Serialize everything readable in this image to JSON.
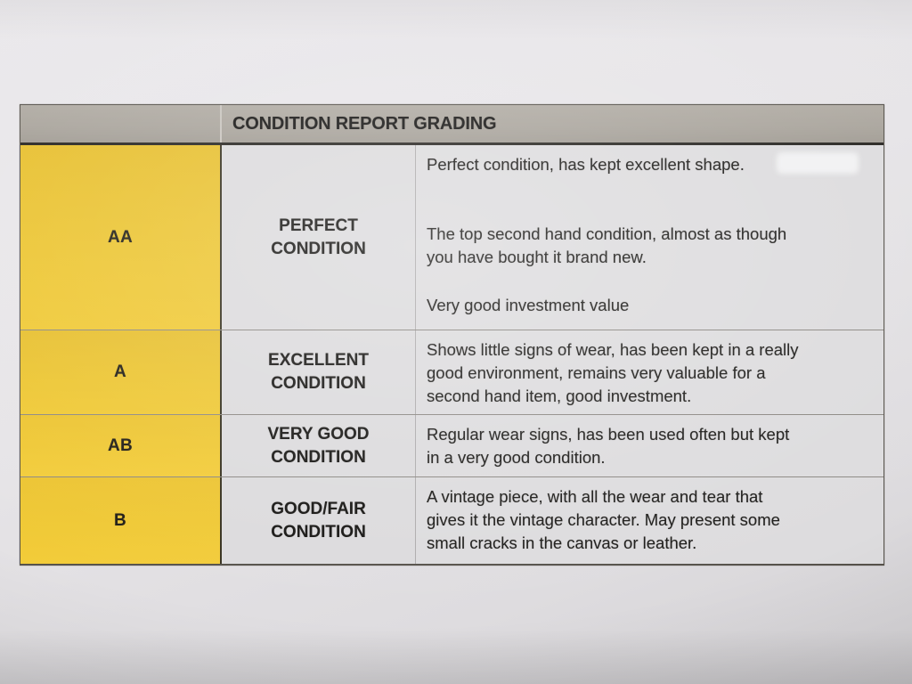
{
  "document": {
    "kind": "photographed printed table",
    "title": "CONDITION REPORT GRADING"
  },
  "table": {
    "header": "CONDITION REPORT GRADING",
    "columns": [
      "grade",
      "condition",
      "description"
    ],
    "rows": [
      {
        "grade": "AA",
        "condition_lines": [
          "PERFECT",
          "CONDITION"
        ],
        "description_lines": [
          "Perfect condition, has kept excellent shape.",
          "The top second hand condition, almost as though",
          "you have bought it brand new.",
          "Very good investment value"
        ]
      },
      {
        "grade": "A",
        "condition_lines": [
          "EXCELLENT",
          "CONDITION"
        ],
        "description_lines": [
          "Shows little signs of wear, has been kept in a really",
          "good environment, remains very valuable for a",
          "second hand item, good investment."
        ]
      },
      {
        "grade": "AB",
        "condition_lines": [
          "VERY GOOD",
          "CONDITION"
        ],
        "description_lines": [
          "Regular wear signs, has been used often but kept",
          "in a very good condition."
        ]
      },
      {
        "grade": "B",
        "condition_lines": [
          "GOOD/FAIR",
          "CONDITION"
        ],
        "description_lines": [
          "A vintage piece, with all the wear and tear that",
          "gives it the vintage character. May present some",
          "small cracks in the canvas or leather."
        ]
      }
    ],
    "colors": {
      "grade_cell_yellow": "#ecc531",
      "header_bar_gray": "#a9a49c",
      "cell_background": "#dcdbdd",
      "paper_background": "#e6e4e7",
      "text": "#1b1a18",
      "heavy_border": "#262420",
      "thin_border": "#8d8984"
    }
  }
}
